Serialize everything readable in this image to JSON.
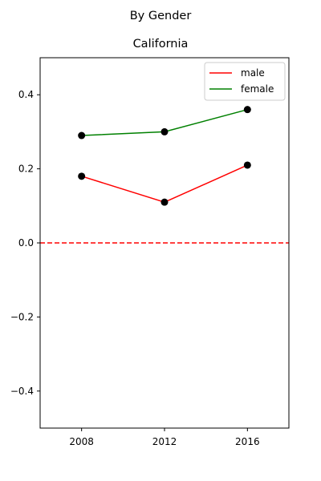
{
  "chart_data": {
    "type": "line",
    "suptitle": "By Gender",
    "title": "California",
    "xlabel": "",
    "ylabel": "",
    "x": [
      2008,
      2012,
      2016
    ],
    "xticks": [
      "2008",
      "2012",
      "2016"
    ],
    "xlim": [
      2006,
      2018
    ],
    "ylim": [
      -0.5,
      0.5
    ],
    "yticks": [
      -0.4,
      -0.2,
      0.0,
      0.2,
      0.4
    ],
    "yticklabels": [
      "−0.4",
      "−0.2",
      "0.0",
      "0.2",
      "0.4"
    ],
    "reference_line": {
      "y": 0.0,
      "color": "#ff0000",
      "style": "dashed"
    },
    "series": [
      {
        "name": "male",
        "color": "#ff0000",
        "marker_color": "#000000",
        "values": [
          0.18,
          0.11,
          0.21
        ]
      },
      {
        "name": "female",
        "color": "#008000",
        "marker_color": "#000000",
        "values": [
          0.29,
          0.3,
          0.36
        ]
      }
    ],
    "legend": {
      "position": "top-right"
    },
    "grid": false
  }
}
